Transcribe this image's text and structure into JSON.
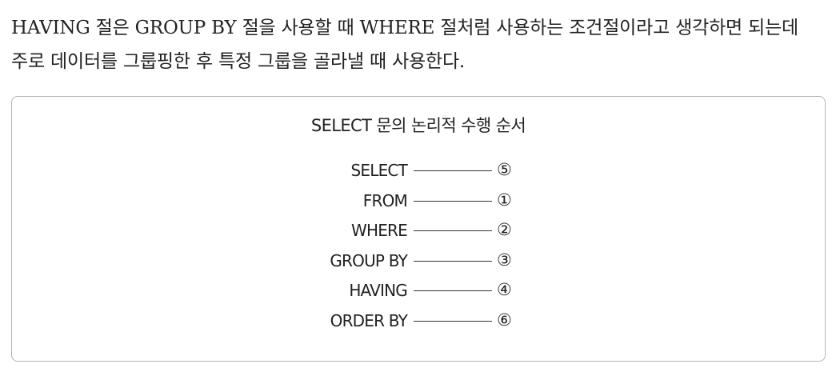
{
  "intro": {
    "line1": "HAVING 절은 GROUP BY 절을 사용할 때 WHERE 절처럼 사용하는 조건절이라고 생각하면 되는데",
    "line2": "주로 데이터를 그룹핑한 후 특정 그룹을 골라낼 때 사용한다."
  },
  "box": {
    "title": "SELECT 문의 논리적 수행 순서",
    "steps": [
      {
        "clause": "SELECT",
        "order": "⑤"
      },
      {
        "clause": "FROM",
        "order": "①"
      },
      {
        "clause": "WHERE",
        "order": "②"
      },
      {
        "clause": "GROUP BY",
        "order": "③"
      },
      {
        "clause": "HAVING",
        "order": "④"
      },
      {
        "clause": "ORDER BY",
        "order": "⑥"
      }
    ]
  }
}
